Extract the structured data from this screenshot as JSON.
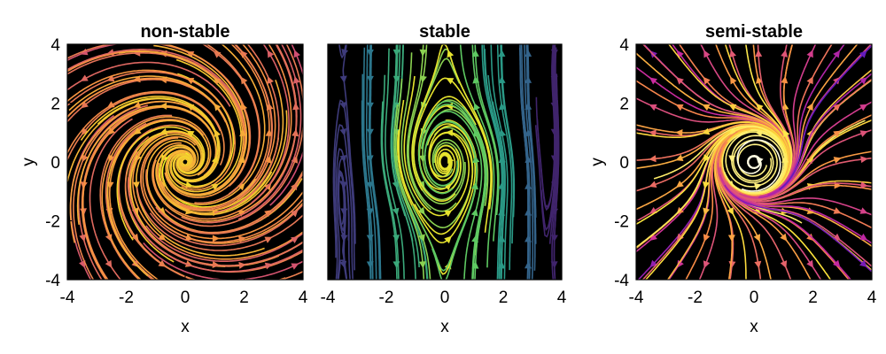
{
  "chart_data": [
    {
      "type": "streamplot",
      "title": "non-stable",
      "xlabel": "x",
      "ylabel": "y",
      "xlim": [
        -4,
        4
      ],
      "ylim": [
        -4,
        4
      ],
      "xticks": [
        "-4",
        "-2",
        "0",
        "2",
        "4"
      ],
      "yticks": [
        "-4",
        "-2",
        "0",
        "2",
        "4"
      ],
      "background": "#000000",
      "colormap": "plasma",
      "flow": "outward spiral from origin, counter-clockwise rotation"
    },
    {
      "type": "streamplot",
      "title": "stable",
      "xlabel": "x",
      "ylabel": "",
      "xlim": [
        -4,
        4
      ],
      "ylim": [
        -4,
        4
      ],
      "xticks": [
        "-4",
        "-2",
        "0",
        "2",
        "4"
      ],
      "yticks": [],
      "background": "#000000",
      "colormap": "viridis",
      "flow": "vertical shear flow with a spiral near the origin"
    },
    {
      "type": "streamplot",
      "title": "semi-stable",
      "xlabel": "x",
      "ylabel": "y",
      "xlim": [
        -4,
        4
      ],
      "ylim": [
        -4,
        4
      ],
      "xticks": [
        "-4",
        "-2",
        "0",
        "2",
        "4"
      ],
      "yticks": [
        "-4",
        "-2",
        "0",
        "2",
        "4"
      ],
      "background": "#000000",
      "colormap": "inferno (white near origin)",
      "flow": "spiral at origin, outward radial flow"
    }
  ],
  "colors": {
    "background": "#000000",
    "frame": "#000000",
    "page": "#ffffff"
  }
}
